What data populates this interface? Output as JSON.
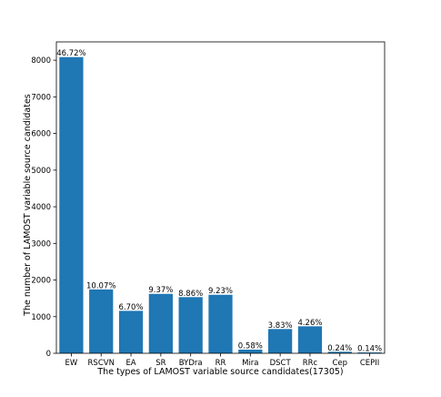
{
  "chart_data": {
    "type": "bar",
    "xlabel": "The types of LAMOST variable source candidates(17305)",
    "ylabel": "The number of LAMOST variable source candidates",
    "ylim": [
      0,
      8500
    ],
    "yticks": [
      0,
      1000,
      2000,
      3000,
      4000,
      5000,
      6000,
      7000,
      8000
    ],
    "categories": [
      "EW",
      "RSCVN",
      "EA",
      "SR",
      "BYDra",
      "RR",
      "Mira",
      "DSCT",
      "RRc",
      "Cep",
      "CEPII"
    ],
    "values": [
      8085,
      1743,
      1159,
      1622,
      1533,
      1597,
      100,
      663,
      737,
      42,
      24
    ],
    "labels": [
      "46.72%",
      "10.07%",
      "6.70%",
      "9.37%",
      "8.86%",
      "9.23%",
      "0.58%",
      "3.83%",
      "4.26%",
      "0.24%",
      "0.14%"
    ],
    "bar_color": "#1f77b4",
    "grid": false
  }
}
